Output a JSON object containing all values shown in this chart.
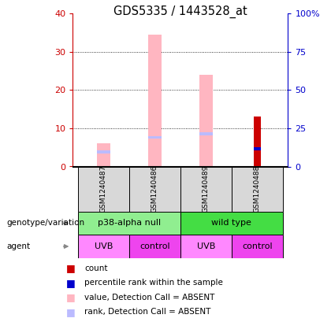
{
  "title": "GDS5335 / 1443528_at",
  "samples": [
    "GSM1240487",
    "GSM1240486",
    "GSM1240489",
    "GSM1240488"
  ],
  "x_positions": [
    0,
    1,
    2,
    3
  ],
  "value_absent": [
    6.0,
    34.5,
    24.0,
    0.0
  ],
  "rank_absent_pct": [
    10.5,
    20.0,
    22.5,
    0.0
  ],
  "count_values": [
    0.0,
    0.0,
    0.0,
    13.0
  ],
  "percentile_rank_pct": [
    0.0,
    0.0,
    0.0,
    12.5
  ],
  "ylim_left": [
    0,
    40
  ],
  "ylim_right": [
    0,
    100
  ],
  "yticks_left": [
    0,
    10,
    20,
    30,
    40
  ],
  "yticks_right": [
    0,
    25,
    50,
    75,
    100
  ],
  "ytick_labels_left": [
    "0",
    "10",
    "20",
    "30",
    "40"
  ],
  "ytick_labels_right": [
    "0",
    "25",
    "50",
    "75",
    "100%"
  ],
  "color_value_absent": "#FFB6C1",
  "color_rank_absent": "#BBBBFF",
  "color_count": "#CC0000",
  "color_percentile": "#0000CC",
  "pink_bar_width": 0.25,
  "blue_bar_width": 0.08,
  "genotype_color_1": "#90EE90",
  "genotype_color_2": "#44DD44",
  "agent_color_uvb": "#FF88FF",
  "agent_color_control": "#EE44EE",
  "legend_items": [
    {
      "color": "#CC0000",
      "label": "count"
    },
    {
      "color": "#0000CC",
      "label": "percentile rank within the sample"
    },
    {
      "color": "#FFB6C1",
      "label": "value, Detection Call = ABSENT"
    },
    {
      "color": "#BBBBFF",
      "label": "rank, Detection Call = ABSENT"
    }
  ],
  "left_axis_color": "#CC0000",
  "right_axis_color": "#0000CC",
  "bg_color": "#D8D8D8"
}
